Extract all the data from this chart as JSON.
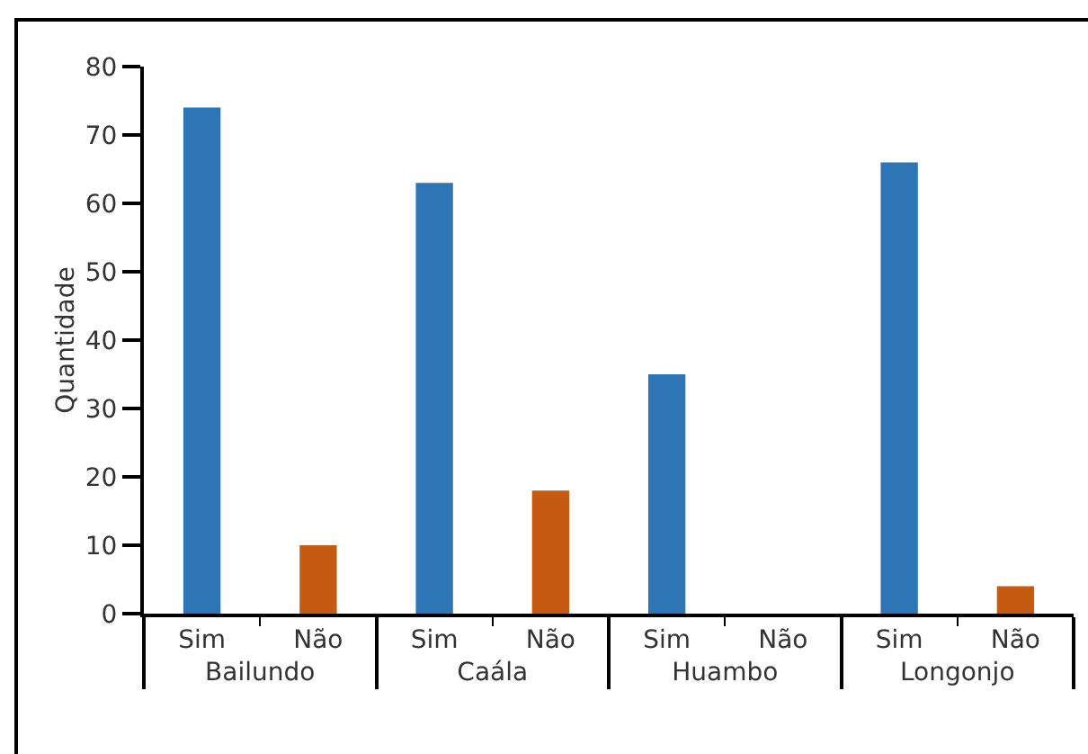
{
  "chart_data": {
    "type": "bar",
    "ylabel": "Quantidade",
    "categories": [
      "Bailundo",
      "Caála",
      "Huambo",
      "Longonjo"
    ],
    "series": [
      {
        "name": "Sim",
        "color": "#2e75b6",
        "values": [
          74,
          63,
          35,
          66
        ]
      },
      {
        "name": "Não",
        "color": "#c55a11",
        "values": [
          10,
          18,
          0,
          4
        ]
      }
    ],
    "ylim": [
      0,
      80
    ],
    "yticks": [
      0,
      10,
      20,
      30,
      40,
      50,
      60,
      70,
      80
    ],
    "grid": false,
    "legend": false
  }
}
